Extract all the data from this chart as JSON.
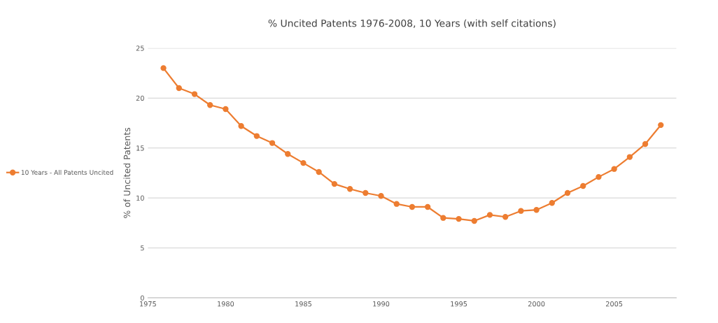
{
  "chart_data": {
    "type": "line",
    "title": "% Uncited Patents 1976-2008, 10 Years (with self citations)",
    "ylabel": "% of Uncited Patents",
    "x": [
      1976,
      1977,
      1978,
      1979,
      1980,
      1981,
      1982,
      1983,
      1984,
      1985,
      1986,
      1987,
      1988,
      1989,
      1990,
      1991,
      1992,
      1993,
      1994,
      1995,
      1996,
      1997,
      1998,
      1999,
      2000,
      2001,
      2002,
      2003,
      2004,
      2005,
      2006,
      2007,
      2008
    ],
    "series": [
      {
        "name": "10 Years - All Patents Uncited",
        "color": "#ed7d31",
        "values": [
          23.0,
          21.0,
          20.4,
          19.3,
          18.9,
          17.2,
          16.2,
          15.5,
          14.4,
          13.5,
          12.6,
          11.4,
          10.9,
          10.5,
          10.2,
          9.4,
          9.1,
          9.1,
          8.0,
          7.9,
          7.7,
          8.3,
          8.1,
          8.7,
          8.8,
          9.5,
          10.5,
          11.2,
          12.1,
          12.9,
          14.1,
          15.4,
          17.3
        ]
      }
    ],
    "xlim": [
      1975,
      2009
    ],
    "xticks": [
      1975,
      1980,
      1985,
      1990,
      1995,
      2000,
      2005
    ],
    "ylim": [
      0,
      25
    ],
    "yticks": [
      0,
      5,
      10,
      15,
      20,
      25
    ],
    "grid": "y",
    "legend": "left",
    "marker": "circle",
    "line_style": "solid"
  }
}
